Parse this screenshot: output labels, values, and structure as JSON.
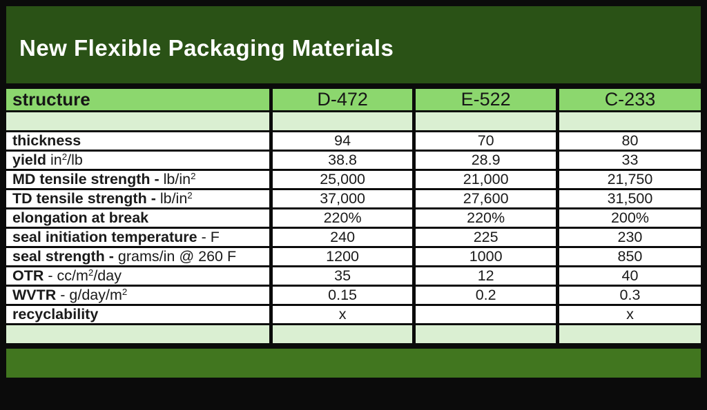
{
  "title": "New Flexible Packaging Materials",
  "colors": {
    "title_bg": "#2a5216",
    "header_bg": "#8cd76e",
    "spacer_bg": "#daefd2",
    "footer_bg": "#41761f",
    "border": "#0b0b0b"
  },
  "table": {
    "header": {
      "label": "structure",
      "columns": [
        "D-472",
        "E-522",
        "C-233"
      ]
    },
    "rows": [
      {
        "label_parts": [
          {
            "text": "thickness",
            "style": "bold"
          }
        ],
        "values": [
          "94",
          "70",
          "80"
        ]
      },
      {
        "label_parts": [
          {
            "text": "yield",
            "style": "bold"
          },
          {
            "text": " in",
            "style": "regular"
          },
          {
            "text": "2",
            "style": "sup"
          },
          {
            "text": "/lb",
            "style": "regular"
          }
        ],
        "values": [
          "38.8",
          "28.9",
          "33"
        ]
      },
      {
        "label_parts": [
          {
            "text": "MD tensile strength -",
            "style": "bold"
          },
          {
            "text": " lb/in",
            "style": "regular"
          },
          {
            "text": "2",
            "style": "sup"
          }
        ],
        "values": [
          "25,000",
          "21,000",
          "21,750"
        ]
      },
      {
        "label_parts": [
          {
            "text": "TD tensile strength -",
            "style": "bold"
          },
          {
            "text": " lb/in",
            "style": "regular"
          },
          {
            "text": "2",
            "style": "sup"
          }
        ],
        "values": [
          "37,000",
          "27,600",
          "31,500"
        ]
      },
      {
        "label_parts": [
          {
            "text": "elongation at break",
            "style": "bold"
          }
        ],
        "values": [
          "220%",
          "220%",
          "200%"
        ]
      },
      {
        "label_parts": [
          {
            "text": "seal initiation temperature",
            "style": "bold"
          },
          {
            "text": " - F",
            "style": "regular"
          }
        ],
        "values": [
          "240",
          "225",
          "230"
        ]
      },
      {
        "label_parts": [
          {
            "text": "seal strength -",
            "style": "bold"
          },
          {
            "text": " grams/in @ 260 F",
            "style": "regular"
          }
        ],
        "values": [
          "1200",
          "1000",
          "850"
        ]
      },
      {
        "label_parts": [
          {
            "text": "OTR",
            "style": "bold"
          },
          {
            "text": " - cc/m",
            "style": "regular"
          },
          {
            "text": "2",
            "style": "sup"
          },
          {
            "text": "/day",
            "style": "regular"
          }
        ],
        "values": [
          "35",
          "12",
          "40"
        ]
      },
      {
        "label_parts": [
          {
            "text": "WVTR",
            "style": "bold"
          },
          {
            "text": " - g/day/m",
            "style": "regular"
          },
          {
            "text": "2",
            "style": "sup"
          }
        ],
        "values": [
          "0.15",
          "0.2",
          "0.3"
        ]
      },
      {
        "label_parts": [
          {
            "text": "recyclability",
            "style": "bold"
          }
        ],
        "values": [
          "x",
          "",
          "x"
        ]
      }
    ]
  }
}
